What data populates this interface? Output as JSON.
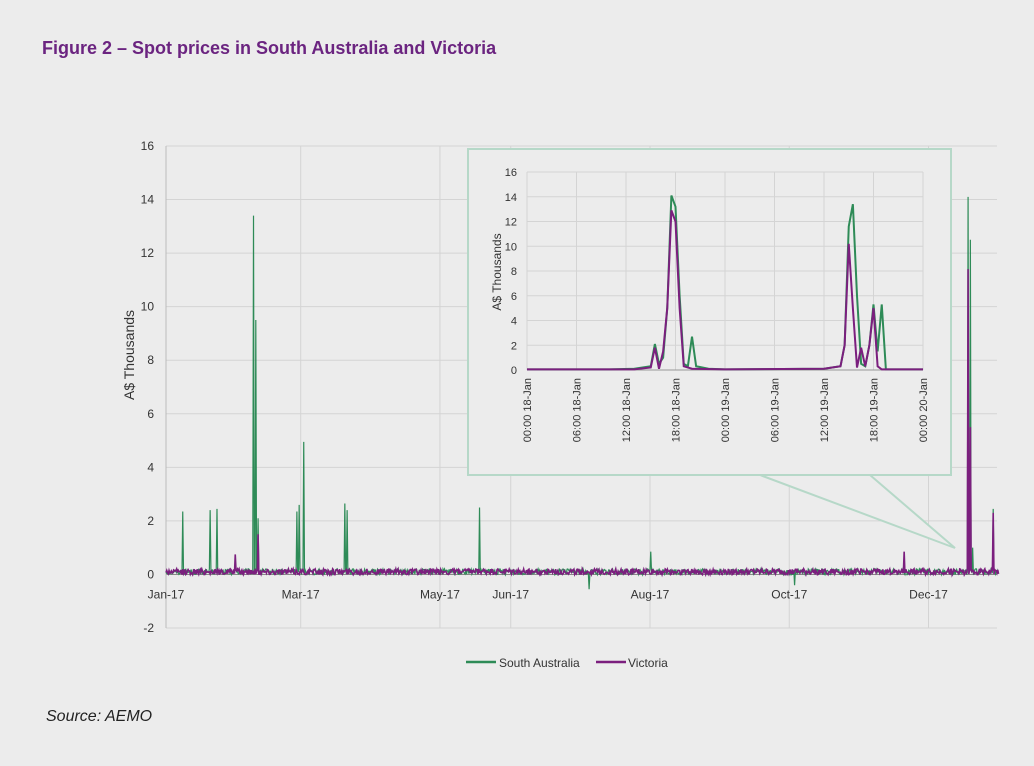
{
  "figure": {
    "title": "Figure 2 – Spot prices in South Australia and Victoria",
    "source": "Source: AEMO"
  },
  "colors": {
    "south_australia": "#2e8b57",
    "victoria": "#7b1f7e",
    "title": "#6b2480",
    "inset_border": "#b6d8c8"
  },
  "chart_data": [
    {
      "type": "line",
      "title": "",
      "xlabel": "",
      "ylabel": "A$ Thousands",
      "ylim": [
        -2,
        16
      ],
      "y_ticks": [
        -2,
        0,
        2,
        4,
        6,
        8,
        10,
        12,
        14,
        16
      ],
      "x_range": [
        "2017-01-01",
        "2017-12-31"
      ],
      "x_tick_labels": [
        "Jan-17",
        "Mar-17",
        "May-17",
        "Jun-17",
        "Aug-17",
        "Oct-17",
        "Dec-17"
      ],
      "x_tick_dates": [
        "2017-01-01",
        "2017-03-01",
        "2017-05-01",
        "2017-06-01",
        "2017-08-01",
        "2017-10-01",
        "2017-12-01"
      ],
      "grid": true,
      "legend": "bottom",
      "series": [
        {
          "name": "South Australia",
          "baseline": 0.1,
          "spikes": [
            {
              "x": "2017-01-08",
              "y": 2.35
            },
            {
              "x": "2017-01-20",
              "y": 2.4
            },
            {
              "x": "2017-01-23",
              "y": 2.45
            },
            {
              "x": "2017-02-08",
              "y": 13.4
            },
            {
              "x": "2017-02-09",
              "y": 9.5
            },
            {
              "x": "2017-02-10",
              "y": 2.1
            },
            {
              "x": "2017-02-27",
              "y": 2.35
            },
            {
              "x": "2017-02-28",
              "y": 2.6
            },
            {
              "x": "2017-03-02",
              "y": 4.95
            },
            {
              "x": "2017-03-20",
              "y": 2.65
            },
            {
              "x": "2017-03-21",
              "y": 2.4
            },
            {
              "x": "2017-05-18",
              "y": 2.5
            },
            {
              "x": "2017-07-05",
              "y": -0.55
            },
            {
              "x": "2017-08-01",
              "y": 0.85
            },
            {
              "x": "2017-10-03",
              "y": -0.4
            },
            {
              "x": "2017-12-18",
              "y": 14.1
            },
            {
              "x": "2017-12-19",
              "y": 12.5
            },
            {
              "x": "2017-12-20",
              "y": 1.0
            },
            {
              "x": "2017-12-29",
              "y": 2.45
            }
          ]
        },
        {
          "name": "Victoria",
          "baseline": 0.1,
          "spikes": [
            {
              "x": "2017-01-31",
              "y": 0.75
            },
            {
              "x": "2017-02-10",
              "y": 1.5
            },
            {
              "x": "2017-11-20",
              "y": 0.85
            },
            {
              "x": "2017-12-18",
              "y": 11.4
            },
            {
              "x": "2017-12-19",
              "y": 5.5
            },
            {
              "x": "2017-12-29",
              "y": 2.3
            }
          ]
        }
      ]
    },
    {
      "type": "line",
      "title": "",
      "xlabel": "",
      "ylabel": "A$ Thousands",
      "ylim": [
        0,
        16
      ],
      "y_ticks": [
        0,
        2,
        4,
        6,
        8,
        10,
        12,
        14,
        16
      ],
      "x_tick_labels": [
        "00:00 18-Jan",
        "06:00 18-Jan",
        "12:00 18-Jan",
        "18:00 18-Jan",
        "00:00 19-Jan",
        "06:00 19-Jan",
        "12:00 19-Jan",
        "18:00 19-Jan",
        "00:00 20-Jan"
      ],
      "x_range_hours": [
        0,
        48
      ],
      "grid": true,
      "series": [
        {
          "name": "South Australia",
          "points": [
            [
              0,
              0.05
            ],
            [
              10,
              0.05
            ],
            [
              13,
              0.1
            ],
            [
              15,
              0.3
            ],
            [
              15.5,
              2.1
            ],
            [
              16,
              0.5
            ],
            [
              16.5,
              1.0
            ],
            [
              17,
              5.0
            ],
            [
              17.5,
              14.1
            ],
            [
              18,
              13.2
            ],
            [
              18.5,
              6.0
            ],
            [
              19,
              0.5
            ],
            [
              19.5,
              0.3
            ],
            [
              20,
              2.7
            ],
            [
              20.5,
              0.3
            ],
            [
              22,
              0.1
            ],
            [
              24,
              0.05
            ],
            [
              36,
              0.1
            ],
            [
              38,
              0.3
            ],
            [
              38.5,
              2.0
            ],
            [
              39,
              11.6
            ],
            [
              39.5,
              13.4
            ],
            [
              40,
              6.0
            ],
            [
              40.5,
              0.5
            ],
            [
              41,
              0.3
            ],
            [
              41.5,
              2.0
            ],
            [
              42,
              5.3
            ],
            [
              42.5,
              1.5
            ],
            [
              43,
              5.3
            ],
            [
              43.5,
              0.05
            ],
            [
              48,
              0.05
            ]
          ]
        },
        {
          "name": "Victoria",
          "points": [
            [
              0,
              0.05
            ],
            [
              13,
              0.05
            ],
            [
              15,
              0.2
            ],
            [
              15.5,
              1.8
            ],
            [
              16,
              0.1
            ],
            [
              16.5,
              1.5
            ],
            [
              17,
              5.0
            ],
            [
              17.5,
              12.9
            ],
            [
              18,
              12.0
            ],
            [
              18.5,
              5.0
            ],
            [
              19,
              0.3
            ],
            [
              20,
              0.1
            ],
            [
              24,
              0.05
            ],
            [
              36,
              0.1
            ],
            [
              38,
              0.3
            ],
            [
              38.5,
              2.0
            ],
            [
              39,
              10.2
            ],
            [
              39.5,
              5.0
            ],
            [
              40,
              0.2
            ],
            [
              40.5,
              1.8
            ],
            [
              41,
              0.3
            ],
            [
              41.5,
              2.0
            ],
            [
              42,
              5.0
            ],
            [
              42.5,
              0.3
            ],
            [
              43,
              0.05
            ],
            [
              48,
              0.05
            ]
          ]
        }
      ]
    }
  ]
}
